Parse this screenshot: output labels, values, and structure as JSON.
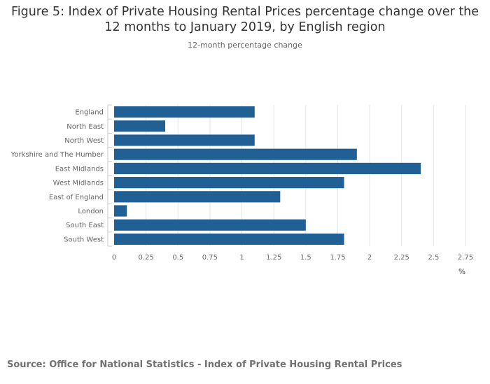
{
  "title_line1": "Figure 5: Index of Private Housing Rental Prices percentage change over the",
  "title_line2": "12 months to January 2019, by English region",
  "subtitle": "12-month percentage change",
  "source": "Source: Office for National Statistics - Index of Private Housing Rental Prices",
  "colors": {
    "bar": "#206095",
    "grid": "#e6e6e6",
    "axis": "#cccccc"
  },
  "chart_data": {
    "type": "bar",
    "orientation": "horizontal",
    "title": "Figure 5: Index of Private Housing Rental Prices percentage change over the 12 months to January 2019, by English region",
    "subtitle": "12-month percentage change",
    "xlabel": "%",
    "ylabel": "",
    "xlim": [
      0,
      2.75
    ],
    "xticks": [
      0,
      0.25,
      0.5,
      0.75,
      1,
      1.25,
      1.5,
      1.75,
      2,
      2.25,
      2.5,
      2.75
    ],
    "xtick_labels": [
      "0",
      "0.25",
      "0.5",
      "0.75",
      "1",
      "1.25",
      "1.5",
      "1.75",
      "2",
      "2.25",
      "2.5",
      "2.75"
    ],
    "grid": true,
    "legend": "none",
    "categories": [
      "England",
      "North East",
      "North West",
      "Yorkshire and The Humber",
      "East Midlands",
      "West Midlands",
      "East of England",
      "London",
      "South East",
      "South West"
    ],
    "values": [
      1.1,
      0.4,
      1.1,
      1.9,
      2.4,
      1.8,
      1.3,
      0.1,
      1.5,
      1.8
    ]
  }
}
